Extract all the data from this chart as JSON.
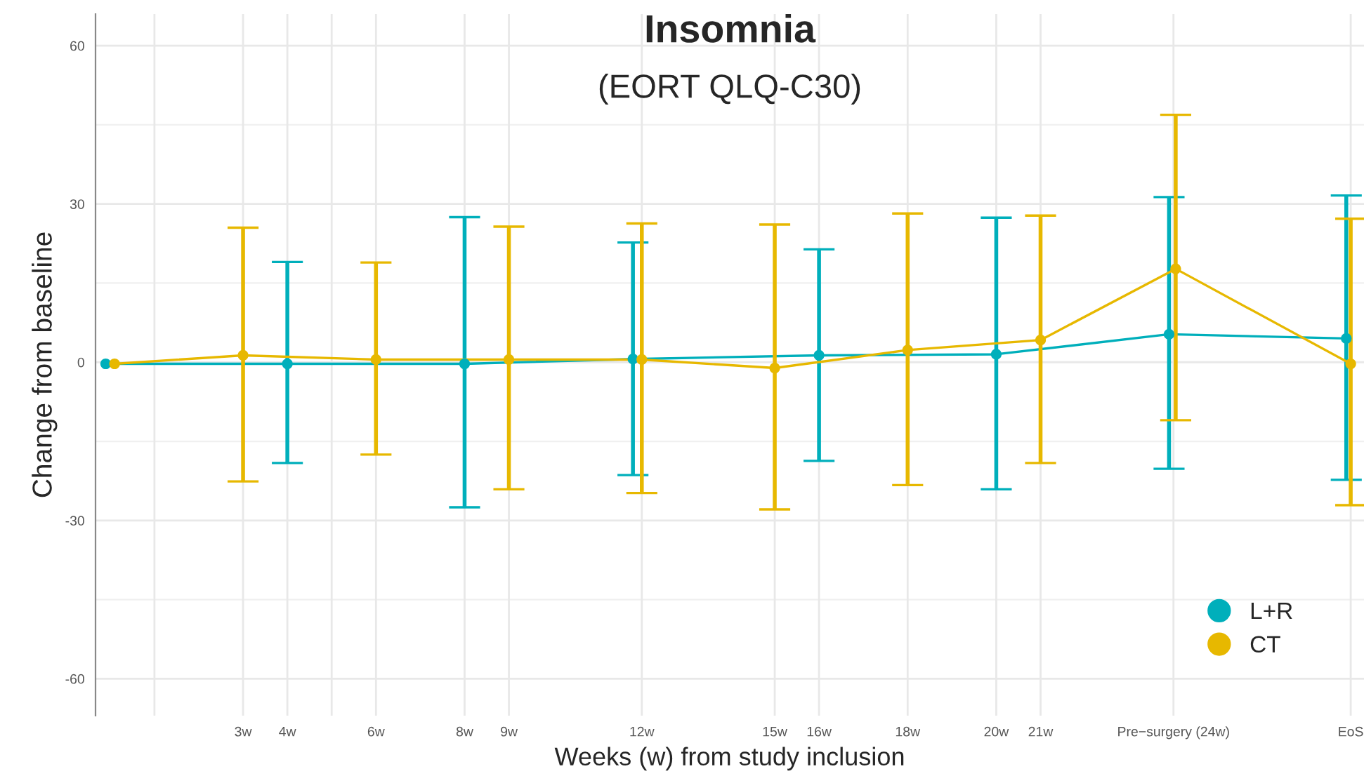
{
  "chart_data": {
    "type": "line",
    "title": "Insomnia",
    "subtitle": "(EORT QLQ-C30)",
    "xlabel": "Weeks (w) from study inclusion",
    "ylabel": "Change from baseline",
    "xlim": [
      -0.33,
      28.3
    ],
    "ylim": [
      -67,
      66
    ],
    "yticks": [
      -60,
      -30,
      0,
      30,
      60
    ],
    "xticks": [
      {
        "value": 1,
        "label": null
      },
      {
        "value": 3,
        "label": "3w"
      },
      {
        "value": 4,
        "label": "4w"
      },
      {
        "value": 5,
        "label": null
      },
      {
        "value": 6,
        "label": "6w"
      },
      {
        "value": 8,
        "label": "8w"
      },
      {
        "value": 9,
        "label": "9w"
      },
      {
        "value": 12,
        "label": "12w"
      },
      {
        "value": 15,
        "label": "15w"
      },
      {
        "value": 16,
        "label": "16w"
      },
      {
        "value": 18,
        "label": "18w"
      },
      {
        "value": 20,
        "label": "20w"
      },
      {
        "value": 21,
        "label": "21w"
      },
      {
        "value": 24,
        "label": "Pre−surgery (24w)"
      },
      {
        "value": 28,
        "label": "EoS"
      }
    ],
    "grid": true,
    "legend": "bottom right",
    "marker": "circle",
    "line_style": "solid",
    "series": [
      {
        "name": "L+R",
        "color": "#00afbb",
        "x": [
          -0.1,
          4,
          8,
          11.8,
          16,
          20,
          23.9,
          27.9
        ],
        "values": [
          -0.3,
          -0.3,
          -0.3,
          0.6,
          1.3,
          1.5,
          5.3,
          4.5
        ],
        "errors": [
          null,
          [
            -19.1,
            19.0
          ],
          [
            -27.5,
            27.5
          ],
          [
            -21.4,
            22.7
          ],
          [
            -18.7,
            21.4
          ],
          [
            -24.1,
            27.4
          ],
          [
            -20.2,
            31.3
          ],
          [
            -22.3,
            31.6
          ]
        ]
      },
      {
        "name": "CT",
        "color": "#e7b800",
        "x": [
          0.1,
          3,
          6,
          9,
          12,
          15,
          18,
          21,
          24.05,
          28
        ],
        "values": [
          -0.3,
          1.3,
          0.5,
          0.5,
          0.5,
          -1.1,
          2.3,
          4.2,
          17.7,
          -0.3
        ],
        "errors": [
          null,
          [
            -22.6,
            25.5
          ],
          [
            -17.5,
            18.9
          ],
          [
            -24.1,
            25.7
          ],
          [
            -24.8,
            26.3
          ],
          [
            -27.9,
            26.1
          ],
          [
            -23.3,
            28.2
          ],
          [
            -19.1,
            27.8
          ],
          [
            -11.0,
            46.9
          ],
          [
            -27.1,
            27.2
          ]
        ]
      }
    ]
  }
}
